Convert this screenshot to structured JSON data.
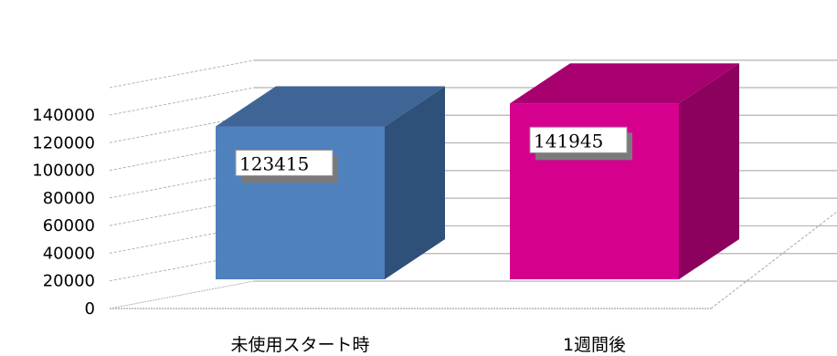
{
  "chart_data": {
    "type": "bar",
    "style": "3d-clustered-column",
    "categories": [
      "未使用スタート時",
      "1週間後"
    ],
    "values": [
      123415,
      141945
    ],
    "data_labels": [
      "123415",
      "141945"
    ],
    "ylim": [
      0,
      140000
    ],
    "yticks": [
      "0",
      "20000",
      "40000",
      "60000",
      "80000",
      "100000",
      "120000",
      "140000"
    ],
    "grid": true,
    "legend": "none",
    "colors": {
      "bar1_front": "#4f81bd",
      "bar1_side": "#2e5079",
      "bar1_top": "#3e6596",
      "bar2_front": "#d6008f",
      "bar2_side": "#8c005e",
      "bar2_top": "#a8006f",
      "grid": "#b3b3b3"
    }
  }
}
